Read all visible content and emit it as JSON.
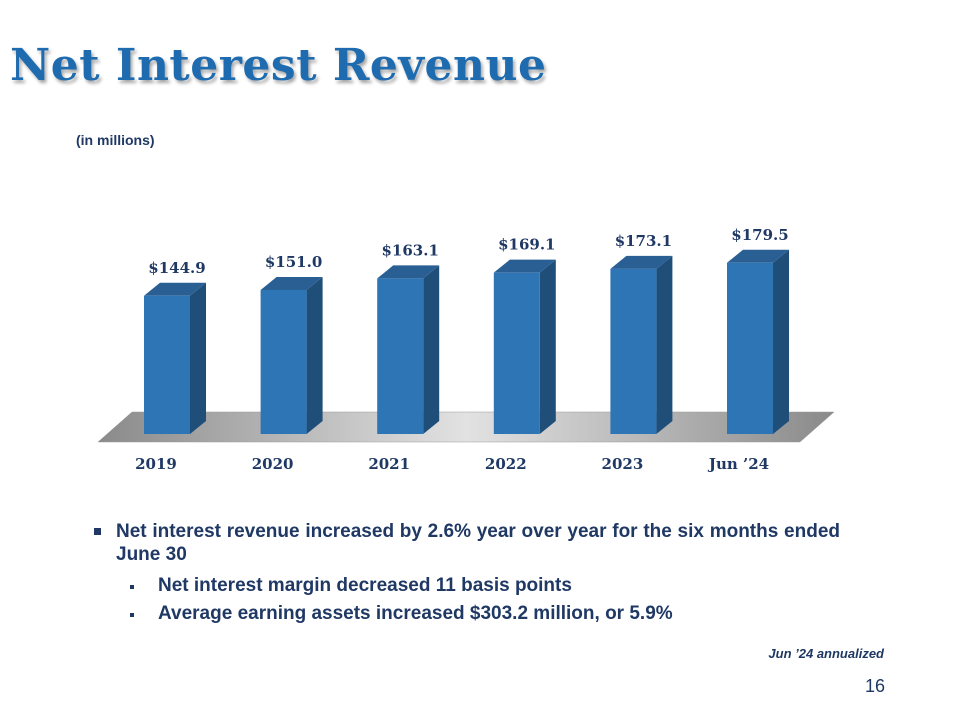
{
  "slide": {
    "title": "Net Interest Revenue",
    "units_note": "(in millions)",
    "footnote": "Jun ’24 annualized",
    "page_number": "16"
  },
  "bullets": {
    "main": "Net interest revenue increased by 2.6% year over year for the six months ended June 30",
    "sub": [
      "Net interest margin decreased 11 basis points",
      "Average earning assets increased $303.2 million, or 5.9%"
    ]
  },
  "colors": {
    "bar_front": "#2e75b6",
    "bar_side": "#1f4e79",
    "bar_top": "#2a5f94",
    "label": "#1f3864"
  },
  "chart_data": {
    "type": "bar",
    "style": "3d",
    "categories": [
      "2019",
      "2020",
      "2021",
      "2022",
      "2023",
      "Jun ’24"
    ],
    "values": [
      144.9,
      151.0,
      163.1,
      169.1,
      173.1,
      179.5
    ],
    "data_labels": [
      "$144.9",
      "$151.0",
      "$163.1",
      "$169.1",
      "$173.1",
      "$179.5"
    ],
    "title": "",
    "xlabel": "",
    "ylabel": "",
    "grid": false,
    "legend": "none"
  }
}
